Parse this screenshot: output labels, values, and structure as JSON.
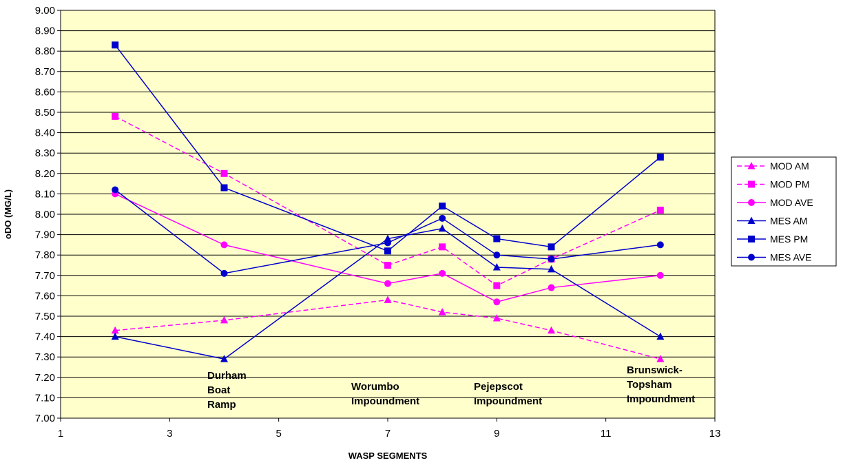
{
  "chart_data": {
    "type": "line",
    "title": "",
    "xlabel": "WASP SEGMENTS",
    "ylabel": "oDO (MG/L)",
    "xlim": [
      1,
      13
    ],
    "ylim": [
      7.0,
      9.0
    ],
    "x_ticks": [
      "1",
      "3",
      "5",
      "7",
      "9",
      "11",
      "13"
    ],
    "y_ticks": [
      "7.00",
      "7.10",
      "7.20",
      "7.30",
      "7.40",
      "7.50",
      "7.60",
      "7.70",
      "7.80",
      "7.90",
      "8.00",
      "8.10",
      "8.20",
      "8.30",
      "8.40",
      "8.50",
      "8.60",
      "8.70",
      "8.80",
      "8.90",
      "9.00"
    ],
    "grid": "horizontal",
    "plot_background": "#ffffcc",
    "legend_position": "right",
    "x": [
      2,
      4,
      7,
      8,
      9,
      10,
      12
    ],
    "series": [
      {
        "name": "MOD AM",
        "color": "#ff00ff",
        "dash": true,
        "marker": "triangle",
        "values": [
          7.43,
          7.48,
          7.58,
          7.52,
          7.49,
          7.43,
          7.29
        ]
      },
      {
        "name": "MOD PM",
        "color": "#ff00ff",
        "dash": true,
        "marker": "square",
        "values": [
          8.48,
          8.2,
          7.75,
          7.84,
          7.65,
          7.78,
          8.02
        ]
      },
      {
        "name": "MOD AVE",
        "color": "#ff00ff",
        "dash": false,
        "marker": "circle",
        "values": [
          8.1,
          7.85,
          7.66,
          7.71,
          7.57,
          7.64,
          7.7
        ]
      },
      {
        "name": "MES AM",
        "color": "#0000cc",
        "dash": false,
        "marker": "triangle",
        "values": [
          7.4,
          7.29,
          7.88,
          7.93,
          7.74,
          7.73,
          7.4
        ]
      },
      {
        "name": "MES PM",
        "color": "#0000cc",
        "dash": false,
        "marker": "square",
        "values": [
          8.83,
          8.13,
          7.82,
          8.04,
          7.88,
          7.84,
          8.28
        ]
      },
      {
        "name": "MES AVE",
        "color": "#0000cc",
        "dash": false,
        "marker": "circle",
        "values": [
          8.12,
          7.71,
          7.86,
          7.98,
          7.8,
          7.78,
          7.85
        ]
      }
    ],
    "annotations": [
      {
        "lines": [
          "Durham",
          "Boat",
          "Ramp"
        ]
      },
      {
        "lines": [
          "Worumbo",
          "Impoundment"
        ]
      },
      {
        "lines": [
          "Pejepscot",
          "Impoundment"
        ]
      },
      {
        "lines": [
          "Brunswick-",
          "Topsham",
          "Impoundment"
        ]
      }
    ]
  }
}
